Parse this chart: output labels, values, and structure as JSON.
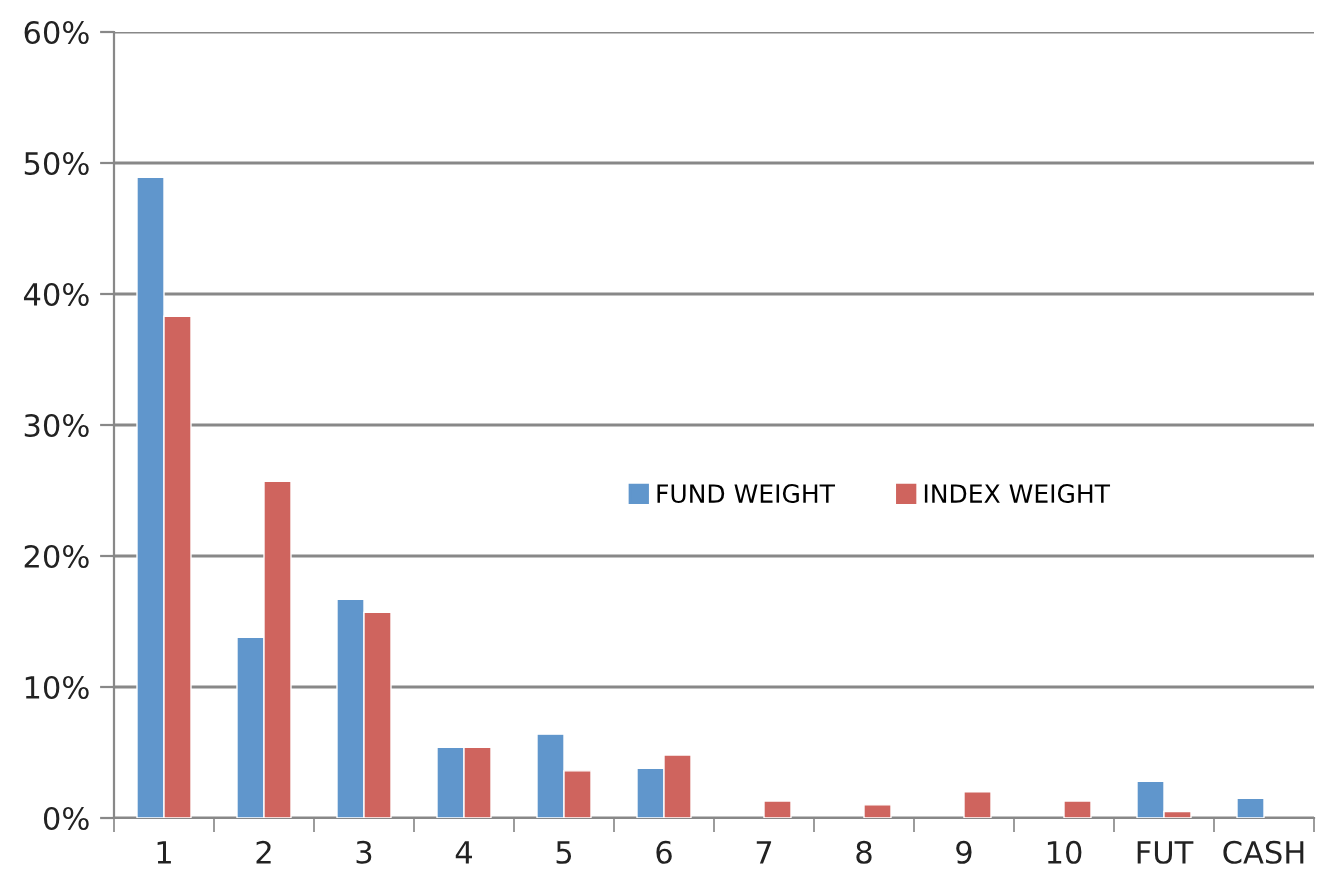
{
  "chart_data": {
    "type": "bar",
    "categories": [
      "1",
      "2",
      "3",
      "4",
      "5",
      "6",
      "7",
      "8",
      "9",
      "10",
      "FUT",
      "CASH"
    ],
    "series": [
      {
        "name": "FUND WEIGHT",
        "color": "#6096cc",
        "values": [
          48.9,
          13.8,
          16.7,
          5.4,
          6.4,
          3.8,
          null,
          null,
          null,
          null,
          2.8,
          1.5
        ]
      },
      {
        "name": "INDEX WEIGHT",
        "color": "#cf645e",
        "values": [
          38.3,
          25.7,
          15.7,
          5.4,
          3.6,
          4.8,
          1.3,
          1.0,
          2.0,
          1.3,
          0.5,
          null
        ]
      }
    ],
    "ylim": [
      0,
      60
    ],
    "yticks": [
      {
        "value": 0,
        "label": "0%"
      },
      {
        "value": 10,
        "label": "10%"
      },
      {
        "value": 20,
        "label": "20%"
      },
      {
        "value": 30,
        "label": "30%"
      },
      {
        "value": 40,
        "label": "40%"
      },
      {
        "value": 50,
        "label": "50%"
      },
      {
        "value": 60,
        "label": "60%"
      }
    ],
    "grid": "y",
    "legend": "right"
  }
}
